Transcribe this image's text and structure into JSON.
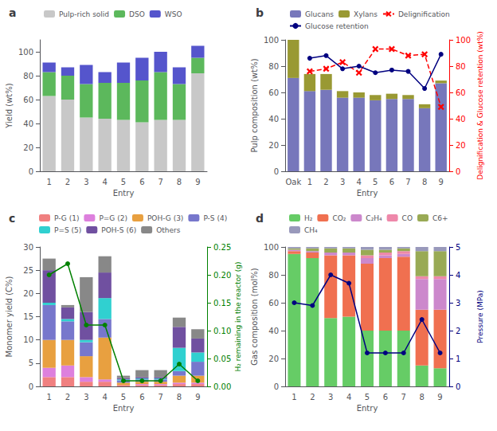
{
  "chart_data": [
    {
      "type": "bar",
      "title": "a",
      "xlabel": "Entry",
      "ylabel": "Yield (wt%)",
      "categories": [
        "1",
        "2",
        "3",
        "4",
        "5",
        "6",
        "7",
        "8",
        "9"
      ],
      "series": [
        {
          "name": "Pulp-rich solid",
          "color": "#c8c8c8",
          "values": [
            63,
            60,
            45,
            44,
            43,
            41,
            43,
            43,
            82
          ]
        },
        {
          "name": "DSO",
          "color": "#5cb85c",
          "values": [
            20,
            20,
            28,
            30,
            31,
            35,
            40,
            30,
            13
          ]
        },
        {
          "name": "WSO",
          "color": "#5555cc",
          "values": [
            8,
            7,
            16,
            9,
            17,
            19,
            17,
            14,
            10
          ]
        }
      ],
      "ylim": [
        0,
        110
      ],
      "yticks": [
        0,
        20,
        40,
        60,
        80,
        100
      ],
      "stacked": true,
      "grid": false,
      "legend": "top"
    },
    {
      "type": "bar",
      "title": "b",
      "xlabel": "Entry",
      "ylabel": "Pulp composition (wt%)",
      "y2label": "Delignification & Glucose retention (wt%)",
      "categories": [
        "Oak",
        "1",
        "2",
        "3",
        "4",
        "5",
        "6",
        "7",
        "8",
        "9"
      ],
      "series": [
        {
          "name": "Glucans",
          "color": "#7777bb",
          "values": [
            71,
            61,
            62,
            56,
            56,
            54,
            55,
            55,
            48,
            67
          ]
        },
        {
          "name": "Xylans",
          "color": "#999933",
          "values": [
            29,
            13,
            12,
            5,
            4,
            4,
            4,
            3,
            3,
            2
          ]
        },
        {
          "name": "Delignification",
          "type": "line",
          "axis": "y2",
          "color": "red",
          "marker": "x",
          "line_style": "dashed",
          "values": [
            null,
            76,
            78,
            83,
            75,
            93,
            93,
            88,
            89,
            49
          ]
        },
        {
          "name": "Glucose retention",
          "type": "line",
          "axis": "y2",
          "color": "navy",
          "marker": "o",
          "line_style": "solid",
          "values": [
            null,
            86,
            88,
            78,
            80,
            75,
            77,
            76,
            63,
            89
          ]
        }
      ],
      "ylim": [
        0,
        100
      ],
      "yticks": [
        0,
        20,
        40,
        60,
        80,
        100
      ],
      "y2lim": [
        0,
        100
      ],
      "y2ticks": [
        0,
        20,
        40,
        60,
        80,
        100
      ],
      "stacked": true,
      "grid": false,
      "legend": "top"
    },
    {
      "type": "bar",
      "title": "c",
      "xlabel": "Entry",
      "ylabel": "Monomer yield (C%)",
      "y2label": "H₂ remaining in the reactor (g)",
      "categories": [
        "1",
        "2",
        "3",
        "4",
        "5",
        "6",
        "7",
        "8",
        "9"
      ],
      "series": [
        {
          "name": "P-G (1)",
          "color": "#f08080",
          "values": [
            2.0,
            2.0,
            1.0,
            1.0,
            0.3,
            0.3,
            0.3,
            0.5,
            0.5
          ]
        },
        {
          "name": "P=G (2)",
          "color": "#dd80dd",
          "values": [
            2.0,
            2.5,
            1.0,
            0.5,
            0.0,
            0.2,
            0.2,
            0.3,
            0.3
          ]
        },
        {
          "name": "POH-G (3)",
          "color": "#e8a040",
          "values": [
            6.0,
            5.5,
            4.5,
            9.0,
            0.5,
            0.5,
            0.5,
            1.5,
            1.5
          ]
        },
        {
          "name": "P-S (4)",
          "color": "#7777cc",
          "values": [
            7.5,
            4.0,
            3.0,
            4.0,
            0.5,
            0.5,
            0.5,
            1.0,
            3.0
          ]
        },
        {
          "name": "P=S (5)",
          "color": "#30d0d0",
          "values": [
            0.5,
            0.5,
            0.5,
            4.5,
            0.2,
            0.2,
            0.2,
            5.0,
            2.0
          ]
        },
        {
          "name": "POH-S (6)",
          "color": "#7050a0",
          "values": [
            7.0,
            2.5,
            6.0,
            5.5,
            0.3,
            0.3,
            0.3,
            4.5,
            3.0
          ]
        },
        {
          "name": "Others",
          "color": "#888888",
          "values": [
            2.5,
            0.5,
            7.5,
            3.5,
            0.5,
            1.5,
            1.5,
            2.0,
            2.0
          ]
        },
        {
          "type": "line",
          "axis": "y2",
          "color": "green",
          "marker": "o",
          "line_style": "solid",
          "values": [
            0.2,
            0.22,
            0.11,
            0.11,
            0.01,
            0.01,
            0.01,
            0.04,
            0.01
          ]
        }
      ],
      "ylim": [
        0,
        30
      ],
      "yticks": [
        0,
        5,
        10,
        15,
        20,
        25,
        30
      ],
      "y2lim": [
        0,
        0.25
      ],
      "y2ticks": [
        {
          "value": 0,
          "label": "0.00"
        },
        {
          "value": 0.05,
          "label": "0.05"
        },
        {
          "value": 0.1,
          "label": "0.10"
        },
        {
          "value": 0.15,
          "label": "0.15"
        },
        {
          "value": 0.2,
          "label": "0.20"
        },
        {
          "value": 0.25,
          "label": "0.25"
        }
      ],
      "stacked": true,
      "grid": false,
      "legend": "top"
    },
    {
      "type": "bar",
      "title": "d",
      "xlabel": "Entry",
      "ylabel": "Gas composition (mol%)",
      "y2label": "Pressure (MPa)",
      "categories": [
        "1",
        "2",
        "3",
        "4",
        "5",
        "6",
        "7",
        "8",
        "9"
      ],
      "series": [
        {
          "name": "H₂",
          "color": "#66cc66",
          "values": [
            95,
            92,
            49,
            50,
            40,
            40,
            40,
            15,
            13
          ]
        },
        {
          "name": "CO₂",
          "color": "#f07050",
          "values": [
            2,
            4,
            45,
            44,
            48,
            52,
            53,
            40,
            42
          ]
        },
        {
          "name": "C₂H₄",
          "color": "#cc88cc",
          "values": [
            1,
            1,
            2,
            2,
            4,
            2,
            2,
            22,
            22
          ]
        },
        {
          "name": "CO",
          "color": "#ee88aa",
          "values": [
            0,
            0,
            0,
            0,
            2,
            2,
            2,
            2,
            2
          ]
        },
        {
          "name": "C6+",
          "color": "#99aa55",
          "values": [
            1,
            2,
            3,
            3,
            4,
            2,
            2,
            18,
            18
          ]
        },
        {
          "name": "CH₄",
          "color": "#9999bb",
          "values": [
            1,
            1,
            1,
            1,
            2,
            2,
            1,
            3,
            3
          ]
        },
        {
          "type": "line",
          "axis": "y2",
          "color": "navy",
          "marker": "o",
          "line_style": "solid",
          "values": [
            3.0,
            2.9,
            4.0,
            3.7,
            1.2,
            1.2,
            1.2,
            2.4,
            1.2
          ]
        }
      ],
      "ylim": [
        0,
        100
      ],
      "yticks": [
        0,
        20,
        40,
        60,
        80,
        100
      ],
      "y2lim": [
        0,
        5
      ],
      "y2ticks": [
        0,
        1,
        2,
        3,
        4,
        5
      ],
      "stacked": true,
      "grid": false,
      "legend": "top"
    }
  ]
}
